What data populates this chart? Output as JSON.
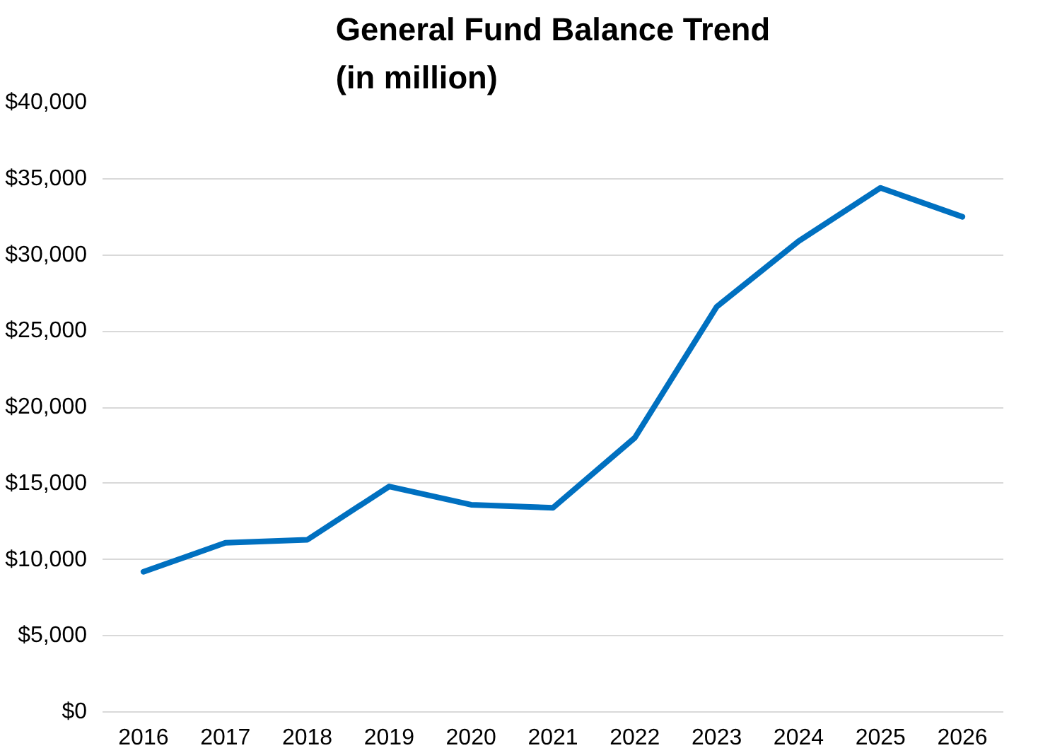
{
  "chart_data": {
    "type": "line",
    "title": "General Fund Balance Trend\n(in million)",
    "categories": [
      "2016",
      "2017",
      "2018",
      "2019",
      "2020",
      "2021",
      "2022",
      "2023",
      "2024",
      "2025",
      "2026"
    ],
    "series": [
      {
        "color": "#0070c0",
        "values": [
          9200,
          11100,
          11300,
          14800,
          13600,
          13400,
          18000,
          26600,
          30900,
          34400,
          32500
        ]
      }
    ],
    "ylim": [
      0,
      40000
    ],
    "yticks": [
      {
        "value": 0,
        "label": "$0"
      },
      {
        "value": 5000,
        "label": "$5,000"
      },
      {
        "value": 10000,
        "label": "$10,000"
      },
      {
        "value": 15000,
        "label": "$15,000"
      },
      {
        "value": 20000,
        "label": "$20,000"
      },
      {
        "value": 25000,
        "label": "$25,000"
      },
      {
        "value": 30000,
        "label": "$30,000"
      },
      {
        "value": 35000,
        "label": "$35,000"
      },
      {
        "value": 40000,
        "label": "$40,000"
      }
    ],
    "grid": "y",
    "marker": "none",
    "line_style": "solid"
  }
}
